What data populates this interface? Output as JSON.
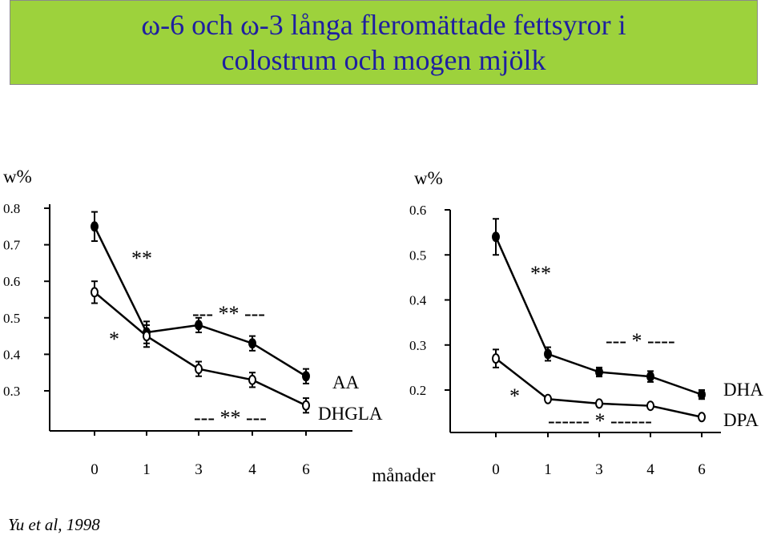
{
  "colors": {
    "title_bg": "#9dd23c",
    "title_text": "#1f1fa0"
  },
  "title": {
    "line1": "ω-6 och ω-3 långa fleromättade fettsyror i",
    "line2": "colostrum och mogen mjölk"
  },
  "citation": "Yu et al, 1998",
  "chart_data": [
    {
      "type": "line",
      "ylabel": "w%",
      "xlabel": "",
      "y_ticks": [
        "0.3",
        "0.4",
        "0.5",
        "0.6",
        "0.7",
        "0.8"
      ],
      "ylim": [
        0.22,
        0.81
      ],
      "categories": [
        "0",
        "1",
        "3",
        "4",
        "6"
      ],
      "series": [
        {
          "name": "AA",
          "marker": "filled",
          "values": [
            0.75,
            0.46,
            0.48,
            0.43,
            0.34
          ],
          "errors": [
            0.04,
            0.03,
            0.02,
            0.02,
            0.02
          ]
        },
        {
          "name": "DHGLA",
          "marker": "open",
          "values": [
            0.57,
            0.45,
            0.36,
            0.33,
            0.26
          ],
          "errors": [
            0.03,
            0.03,
            0.02,
            0.02,
            0.02
          ]
        }
      ],
      "annotations": [
        "**",
        "*",
        "--- ** ---",
        "--- ** ---"
      ]
    },
    {
      "type": "line",
      "ylabel": "w%",
      "xlabel": "månader",
      "y_ticks": [
        "0.2",
        "0.3",
        "0.4",
        "0.5",
        "0.6"
      ],
      "ylim": [
        0.11,
        0.61
      ],
      "categories": [
        "0",
        "1",
        "3",
        "4",
        "6"
      ],
      "series": [
        {
          "name": "DHA",
          "marker": "filled",
          "values": [
            0.54,
            0.28,
            0.24,
            0.23,
            0.19
          ],
          "errors": [
            0.04,
            0.015,
            0.01,
            0.012,
            0.01
          ]
        },
        {
          "name": "DPA",
          "marker": "open",
          "values": [
            0.27,
            0.18,
            0.17,
            0.165,
            0.14
          ],
          "errors": [
            0.02,
            0.0,
            0.0,
            0.0,
            0.0
          ]
        }
      ],
      "annotations": [
        "**",
        "*",
        "--- * ----",
        "------ * ------"
      ]
    }
  ]
}
